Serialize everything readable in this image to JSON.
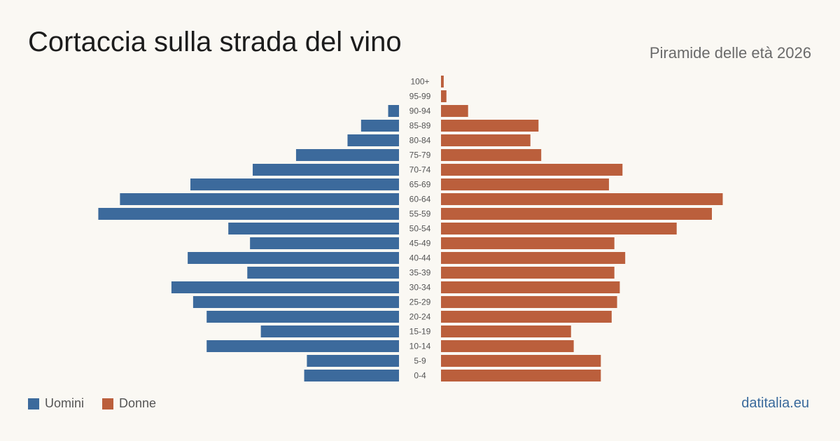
{
  "title": "Cortaccia sulla strada del vino",
  "subtitle": "Piramide delle età 2026",
  "source": "datitalia.eu",
  "colors": {
    "men": "#3c6a9c",
    "women": "#bb5f3c"
  },
  "chart_data": {
    "type": "bar",
    "orientation": "horizontal-pyramid",
    "categories": [
      "100+",
      "95-99",
      "90-94",
      "85-89",
      "80-84",
      "75-79",
      "70-74",
      "65-69",
      "60-64",
      "55-59",
      "50-54",
      "45-49",
      "40-44",
      "35-39",
      "30-34",
      "25-29",
      "20-24",
      "15-19",
      "10-14",
      "5-9",
      "0-4"
    ],
    "series": [
      {
        "name": "Uomini",
        "values": [
          0,
          0,
          4,
          14,
          19,
          38,
          54,
          77,
          103,
          111,
          63,
          55,
          78,
          56,
          84,
          76,
          71,
          51,
          71,
          34,
          35
        ]
      },
      {
        "name": "Donne",
        "values": [
          1,
          2,
          10,
          36,
          33,
          37,
          67,
          62,
          104,
          100,
          87,
          64,
          68,
          64,
          66,
          65,
          63,
          48,
          49,
          59,
          59
        ]
      }
    ],
    "legend": "bottom-left"
  }
}
